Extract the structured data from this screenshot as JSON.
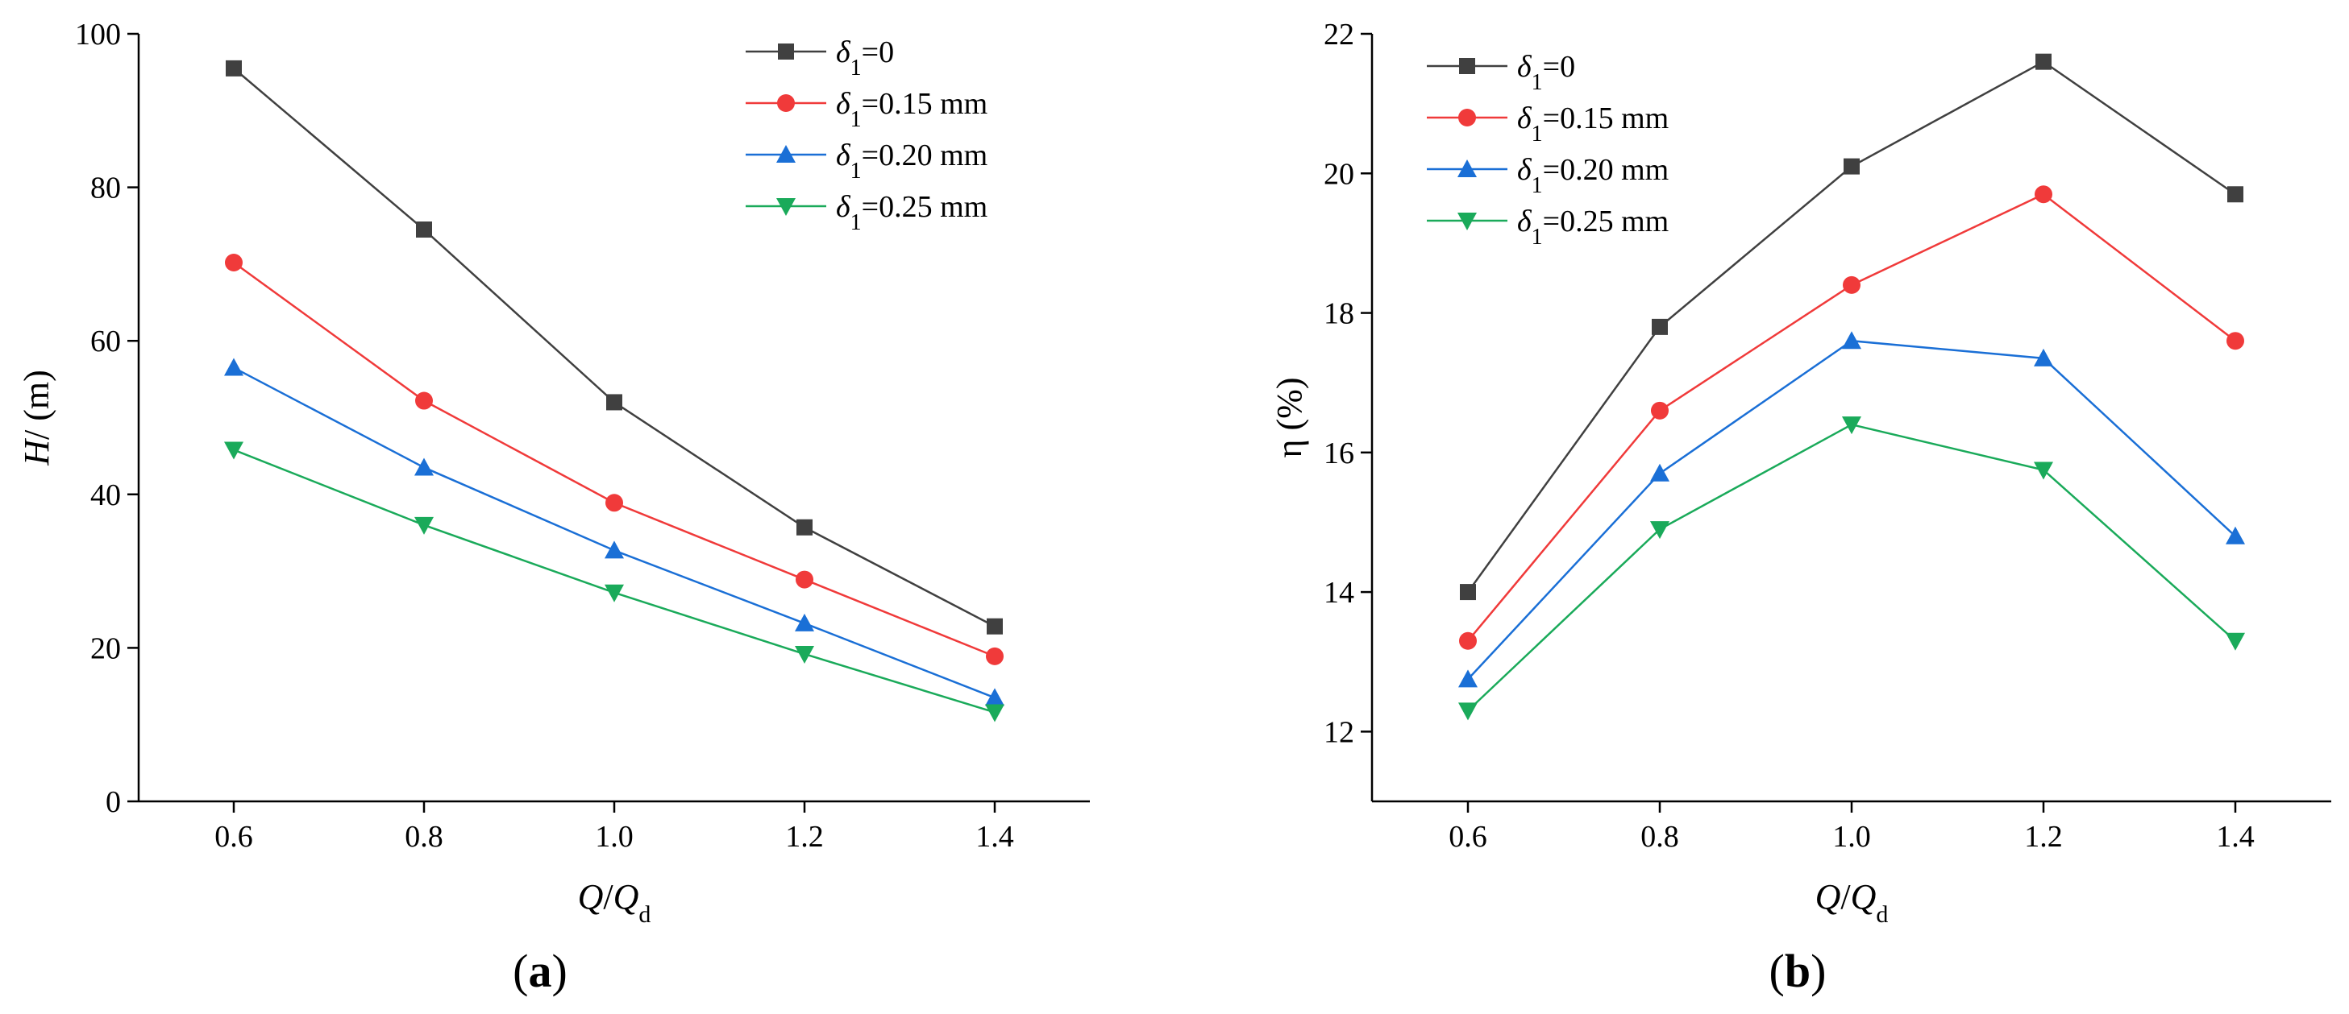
{
  "chart_data": [
    {
      "type": "line",
      "panel_label": "(a)",
      "panel_letter": "a",
      "x": [
        0.6,
        0.8,
        1.0,
        1.2,
        1.4
      ],
      "xtick_labels": [
        "0.6",
        "0.8",
        "1.0",
        "1.2",
        "1.4"
      ],
      "xlim": [
        0.5,
        1.5
      ],
      "xlabel": {
        "main": "Q",
        "slash": "/",
        "denom": "Q",
        "sub": "d"
      },
      "ylabel": {
        "italic": "H",
        "rest": "/ (m)"
      },
      "ylim": [
        0,
        100
      ],
      "yticks": [
        0,
        20,
        40,
        60,
        80,
        100
      ],
      "ytick_labels": [
        "0",
        "20",
        "40",
        "60",
        "80",
        "100"
      ],
      "legend_position": "top-right",
      "series": [
        {
          "name": "δ1=0",
          "label": {
            "sym": "δ",
            "sub": "1",
            "rest": "=0"
          },
          "color": "#404040",
          "marker": "square",
          "values": [
            95.5,
            74.5,
            52.0,
            35.7,
            22.8
          ]
        },
        {
          "name": "δ1=0.15 mm",
          "label": {
            "sym": "δ",
            "sub": "1",
            "rest": "=0.15 mm"
          },
          "color": "#f03a3a",
          "marker": "circle",
          "values": [
            70.2,
            52.2,
            38.9,
            28.9,
            18.9
          ]
        },
        {
          "name": "δ1=0.20 mm",
          "label": {
            "sym": "δ",
            "sub": "1",
            "rest": "=0.20 mm"
          },
          "color": "#1a6fd6",
          "marker": "triangle-up",
          "values": [
            56.5,
            43.5,
            32.7,
            23.2,
            13.5
          ]
        },
        {
          "name": "δ1=0.25 mm",
          "label": {
            "sym": "δ",
            "sub": "1",
            "rest": "=0.25 mm"
          },
          "color": "#1aaa5a",
          "marker": "triangle-down",
          "values": [
            45.8,
            36.0,
            27.2,
            19.2,
            11.6
          ]
        }
      ]
    },
    {
      "type": "line",
      "panel_label": "(b)",
      "panel_letter": "b",
      "x": [
        0.6,
        0.8,
        1.0,
        1.2,
        1.4
      ],
      "xtick_labels": [
        "0.6",
        "0.8",
        "1.0",
        "1.2",
        "1.4"
      ],
      "xlim": [
        0.5,
        1.5
      ],
      "xlabel": {
        "main": "Q",
        "slash": "/",
        "denom": "Q",
        "sub": "d"
      },
      "ylabel": {
        "italic": "",
        "rest": "η (%)"
      },
      "ylim": [
        11,
        22
      ],
      "yticks": [
        12,
        14,
        16,
        18,
        20,
        22
      ],
      "ytick_labels": [
        "12",
        "14",
        "16",
        "18",
        "20",
        "22"
      ],
      "legend_position": "top-left",
      "series": [
        {
          "name": "δ1=0",
          "label": {
            "sym": "δ",
            "sub": "1",
            "rest": "=0"
          },
          "color": "#404040",
          "marker": "square",
          "values": [
            14.0,
            17.8,
            20.1,
            21.6,
            19.7
          ]
        },
        {
          "name": "δ1=0.15 mm",
          "label": {
            "sym": "δ",
            "sub": "1",
            "rest": "=0.15 mm"
          },
          "color": "#f03a3a",
          "marker": "circle",
          "values": [
            13.3,
            16.6,
            18.4,
            19.7,
            17.6
          ]
        },
        {
          "name": "δ1=0.20 mm",
          "label": {
            "sym": "δ",
            "sub": "1",
            "rest": "=0.20 mm"
          },
          "color": "#1a6fd6",
          "marker": "triangle-up",
          "values": [
            12.75,
            15.7,
            17.6,
            17.35,
            14.8
          ]
        },
        {
          "name": "δ1=0.25 mm",
          "label": {
            "sym": "δ",
            "sub": "1",
            "rest": "=0.25 mm"
          },
          "color": "#1aaa5a",
          "marker": "triangle-down",
          "values": [
            12.3,
            14.9,
            16.4,
            15.75,
            13.3
          ]
        }
      ]
    }
  ]
}
